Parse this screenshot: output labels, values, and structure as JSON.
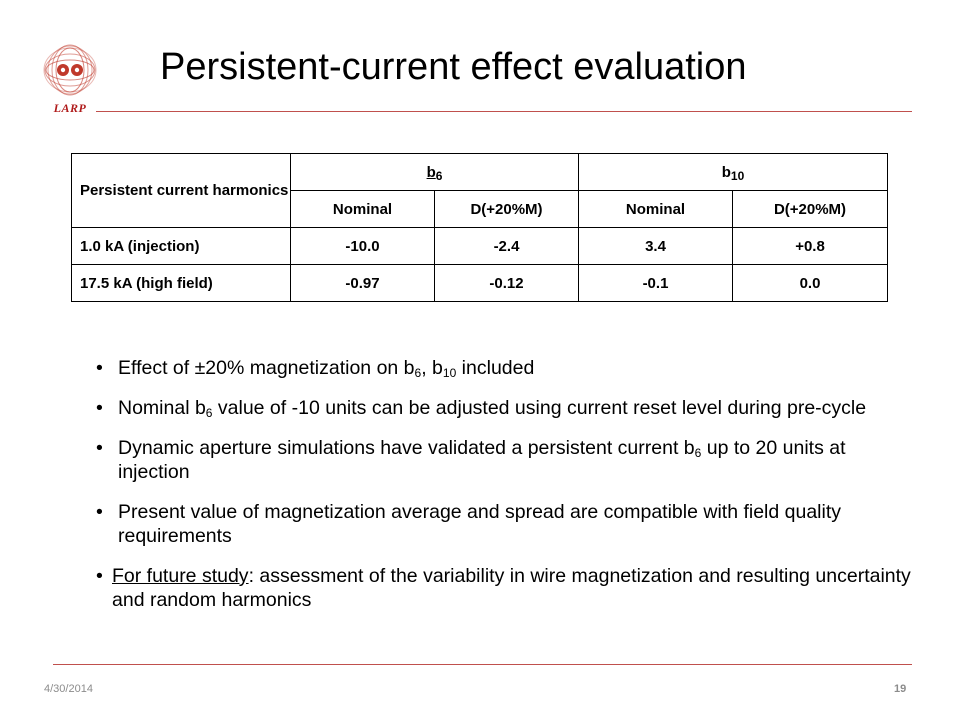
{
  "header": {
    "logo_text": "LARP",
    "title": "Persistent-current effect evaluation"
  },
  "table": {
    "corner_label": "Persistent current harmonics",
    "groups": [
      {
        "base": "b",
        "sub": "6"
      },
      {
        "base": "b",
        "sub": "10"
      }
    ],
    "subheaders": [
      "Nominal",
      "D(+20%M)",
      "Nominal",
      "D(+20%M)"
    ],
    "rows": [
      {
        "label": "1.0 kA (injection)",
        "values": [
          "-10.0",
          "-2.4",
          "3.4",
          "+0.8"
        ]
      },
      {
        "label": "17.5 kA (high field)",
        "values": [
          "-0.97",
          "-0.12",
          "-0.1",
          "0.0"
        ]
      }
    ]
  },
  "bullets": {
    "bullet_glyph": "•",
    "b1": {
      "p1": "Effect of ±20% magnetization on b",
      "s1": "6",
      "p2": ", b",
      "s2": "10",
      "p3": " included"
    },
    "b2": {
      "p1": "Nominal b",
      "s1": "6",
      "p2": " value of -10 units can be adjusted using current reset level during pre-cycle"
    },
    "b3": {
      "p1": "Dynamic aperture simulations have validated a persistent current b",
      "s1": "6",
      "p2": " up to 20 units at injection"
    },
    "b4": {
      "text": "Present value of magnetization average and spread are compatible with field quality requirements"
    },
    "b5": {
      "underlined": "For future study",
      "rest": ": assessment of the variability in wire magnetization and resulting uncertainty and random harmonics"
    }
  },
  "footer": {
    "date": "4/30/2014",
    "page": "19"
  },
  "colors": {
    "accent_rule": "#c0504d",
    "logo_red": "#b01c1c",
    "footer_gray": "#8c8c8c"
  }
}
